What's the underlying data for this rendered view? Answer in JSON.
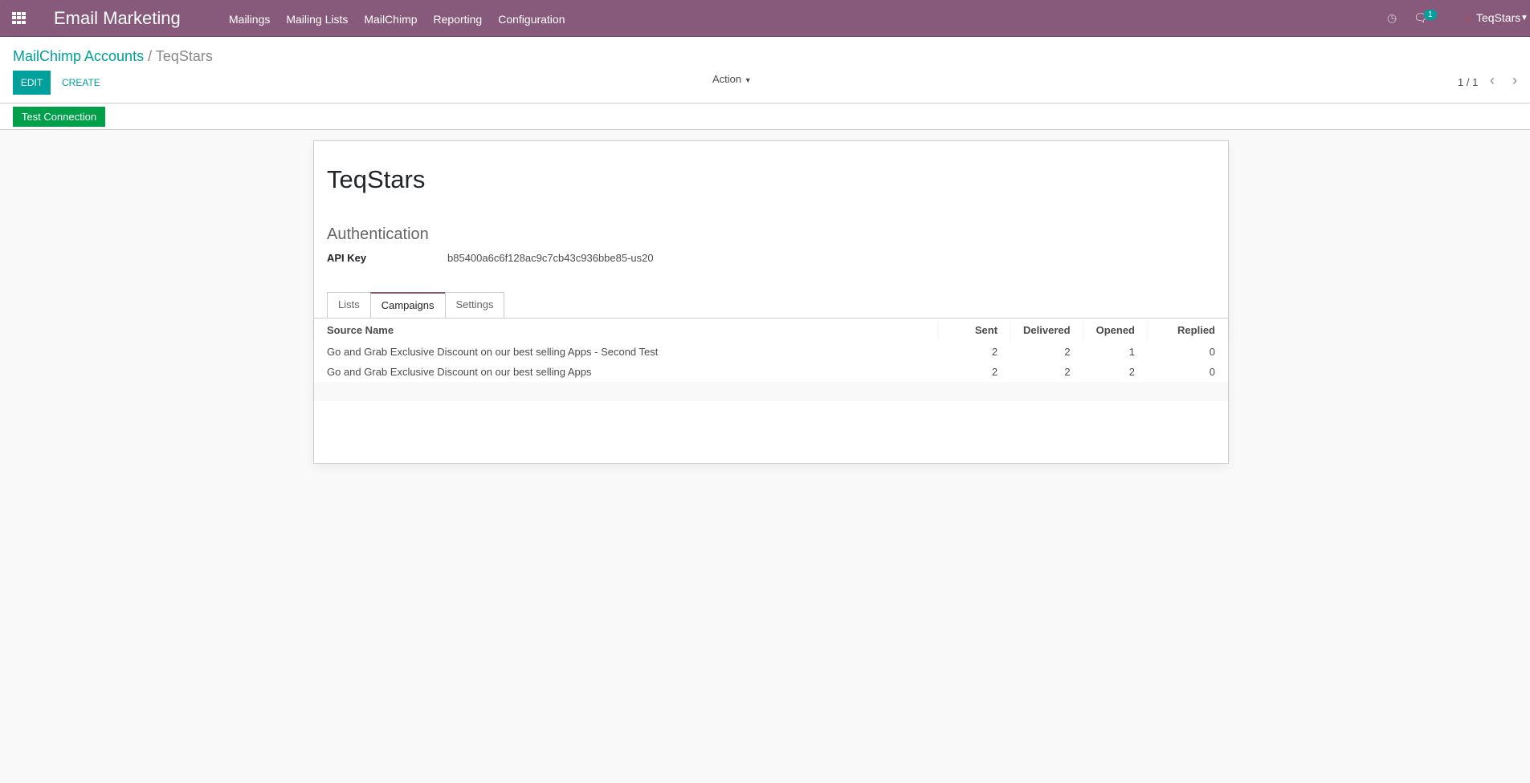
{
  "navbar": {
    "app_title": "Email Marketing",
    "menu": [
      "Mailings",
      "Mailing Lists",
      "MailChimp",
      "Reporting",
      "Configuration"
    ],
    "chat_count": "1",
    "user": "TeqStars",
    "color": "#875a7b"
  },
  "control": {
    "breadcrumb_parent": "MailChimp Accounts",
    "breadcrumb_sep": "/",
    "breadcrumb_current": "TeqStars",
    "edit": "EDIT",
    "create": "CREATE",
    "action": "Action",
    "pager": "1 / 1",
    "test_connection": "Test Connection"
  },
  "form": {
    "title": "TeqStars",
    "section": "Authentication",
    "api_key_label": "API Key",
    "api_key": "b85400a6c6f128ac9c7cb43c936bbe85-us20",
    "tabs": [
      "Lists",
      "Campaigns",
      "Settings"
    ],
    "active_tab": "Campaigns",
    "table": {
      "headers": [
        "Source Name",
        "Sent",
        "Delivered",
        "Opened",
        "Replied"
      ],
      "rows": [
        [
          "Go and Grab Exclusive Discount on our best selling Apps - Second Test",
          "2",
          "2",
          "1",
          "0"
        ],
        [
          "Go and Grab Exclusive Discount on our best selling Apps",
          "2",
          "2",
          "2",
          "0"
        ]
      ]
    }
  }
}
